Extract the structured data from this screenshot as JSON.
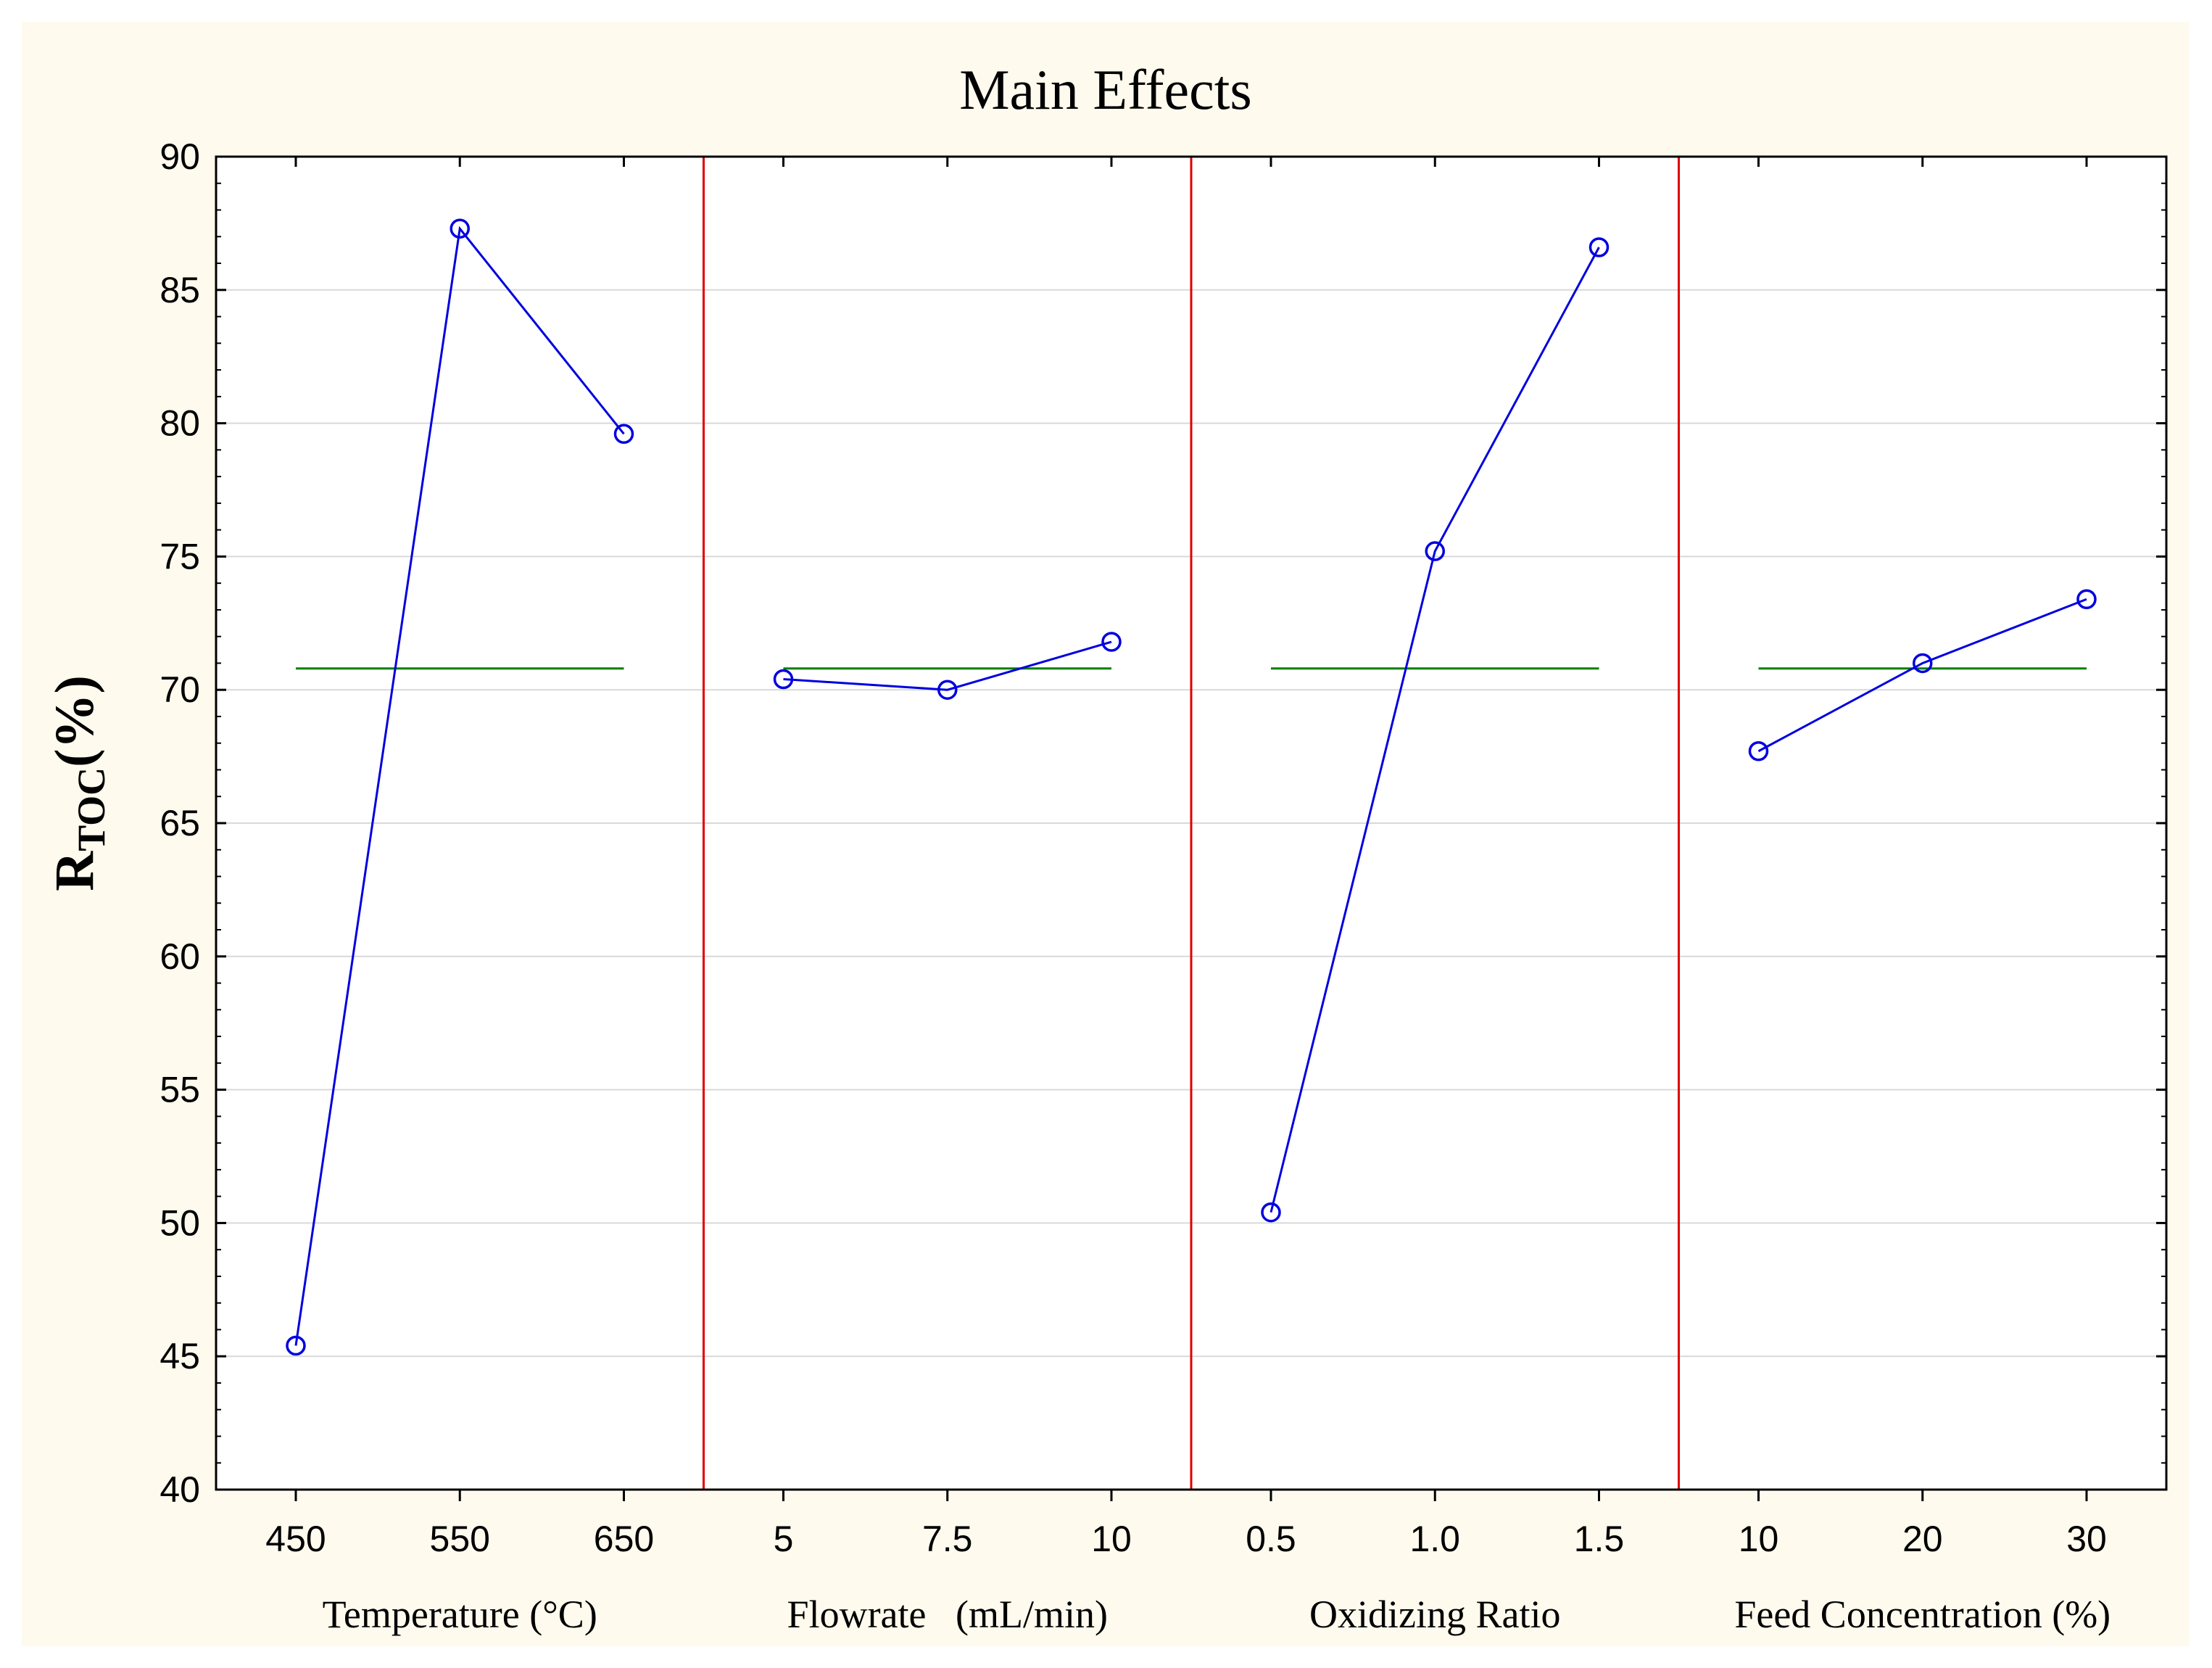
{
  "chart_data": {
    "type": "line",
    "title": "Main Effects",
    "ylabel": "R",
    "ylabel_subscript": "TOC",
    "ylabel_suffix": "(%)",
    "ylim": [
      40,
      90
    ],
    "yticks": [
      40,
      45,
      50,
      55,
      60,
      65,
      70,
      75,
      80,
      85,
      90
    ],
    "grand_mean": 70.8,
    "colors": {
      "series": "#0000e0",
      "mean": "#008000",
      "divider": "#e00000",
      "grid": "#d9d9d9"
    },
    "factors": [
      {
        "name": "Temperature (°C)",
        "levels": [
          "450",
          "550",
          "650"
        ],
        "values": [
          45.4,
          87.3,
          79.6
        ]
      },
      {
        "name": "Flowrate   (mL/min)",
        "levels": [
          "5",
          "7.5",
          "10"
        ],
        "values": [
          70.4,
          70.0,
          71.8
        ]
      },
      {
        "name": "Oxidizing Ratio",
        "levels": [
          "0.5",
          "1.0",
          "1.5"
        ],
        "values": [
          50.4,
          75.2,
          86.6
        ]
      },
      {
        "name": "Feed Concentration (%)",
        "levels": [
          "10",
          "20",
          "30"
        ],
        "values": [
          67.7,
          71.0,
          73.4
        ]
      }
    ]
  }
}
